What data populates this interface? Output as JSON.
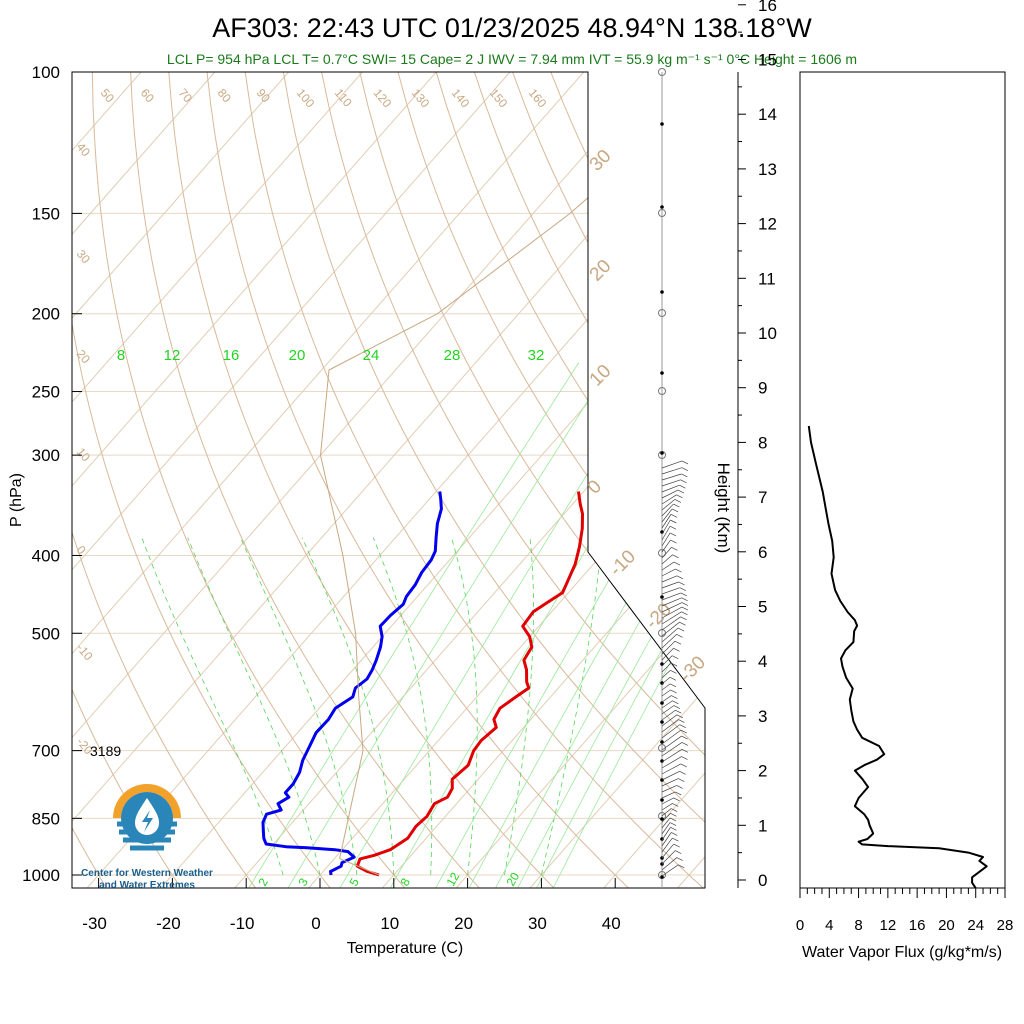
{
  "title": "AF303: 22:43 UTC 01/23/2025  48.94°N 138.18°W",
  "subtitle": "LCL P= 954 hPa  LCL T= 0.7°C  SWI= 15  Cape= 2 J  IWV = 7.94 mm  IVT = 55.9 kg m⁻¹ s⁻¹  0°C Height = 1606 m",
  "annotation_3189": "3189",
  "logo_line1": "Center for Western Weather",
  "logo_line2": "and Water Extremes",
  "chart_data": [
    {
      "type": "line",
      "name": "skew-t",
      "xlabel": "Temperature (C)",
      "ylabel": "P (hPa)",
      "ylog": true,
      "xlim": [
        -34,
        52
      ],
      "ylim": [
        1050,
        100
      ],
      "x_ticks": [
        "-30",
        "-20",
        "-10",
        "0",
        "10",
        "20",
        "30",
        "40"
      ],
      "y_ticks": [
        "100",
        "150",
        "200",
        "250",
        "300",
        "400",
        "500",
        "700",
        "850",
        "1000"
      ],
      "isotherm_labels": [
        "50",
        "60",
        "70",
        "80",
        "90",
        "100",
        "110",
        "120",
        "130",
        "140",
        "150",
        "160"
      ],
      "dry_adiabat_labels": [
        "40",
        "30",
        "20",
        "10",
        "0",
        "-10",
        "-20"
      ],
      "mixing_ratio_top_labels": [
        "8",
        "12",
        "16",
        "20",
        "24",
        "28",
        "32"
      ],
      "mixing_ratio_bottom_labels": [
        "2",
        "3",
        "5",
        "8",
        "12",
        "20"
      ],
      "right_temp_labels": [
        "30",
        "20",
        "10",
        "0",
        "-10",
        "-20",
        "-30"
      ],
      "series": [
        {
          "key": "temperature",
          "color": "#e00000",
          "points": [
            [
              8,
              1000
            ],
            [
              6,
              990
            ],
            [
              4,
              975
            ],
            [
              3.5,
              955
            ],
            [
              5,
              945
            ],
            [
              6.5,
              930
            ],
            [
              7.5,
              900
            ],
            [
              7.2,
              870
            ],
            [
              7.5,
              845
            ],
            [
              7,
              815
            ],
            [
              8,
              800
            ],
            [
              7.6,
              780
            ],
            [
              6.5,
              760
            ],
            [
              7,
              730
            ],
            [
              6,
              700
            ],
            [
              5.8,
              680
            ],
            [
              6.3,
              655
            ],
            [
              5,
              640
            ],
            [
              4.5,
              620
            ],
            [
              5.3,
              600
            ],
            [
              6,
              585
            ],
            [
              5,
              575
            ],
            [
              3.5,
              555
            ],
            [
              2,
              540
            ],
            [
              1.5,
              520
            ],
            [
              0,
              505
            ],
            [
              -2.2,
              490
            ],
            [
              -2.5,
              470
            ],
            [
              -1.5,
              455
            ],
            [
              -0.8,
              445
            ],
            [
              -1.5,
              430
            ],
            [
              -2.5,
              410
            ],
            [
              -4,
              390
            ],
            [
              -5.8,
              370
            ],
            [
              -7.5,
              355
            ],
            [
              -9,
              345
            ],
            [
              -10.7,
              333
            ]
          ]
        },
        {
          "key": "dewpoint",
          "color": "#0000ee",
          "points": [
            [
              1.5,
              1000
            ],
            [
              1,
              990
            ],
            [
              1.8,
              975
            ],
            [
              1.5,
              965
            ],
            [
              2.5,
              950
            ],
            [
              1,
              935
            ],
            [
              -1,
              930
            ],
            [
              -5,
              925
            ],
            [
              -8,
              922
            ],
            [
              -11,
              915
            ],
            [
              -12,
              900
            ],
            [
              -13,
              880
            ],
            [
              -14,
              860
            ],
            [
              -14.5,
              840
            ],
            [
              -13,
              830
            ],
            [
              -14.2,
              815
            ],
            [
              -13.5,
              800
            ],
            [
              -14.5,
              790
            ],
            [
              -14.5,
              770
            ],
            [
              -15,
              745
            ],
            [
              -16,
              720
            ],
            [
              -16.8,
              690
            ],
            [
              -17.5,
              665
            ],
            [
              -17.4,
              640
            ],
            [
              -17.8,
              620
            ],
            [
              -16.8,
              600
            ],
            [
              -17.5,
              585
            ],
            [
              -17,
              570
            ],
            [
              -17.4,
              555
            ],
            [
              -18,
              540
            ],
            [
              -19,
              520
            ],
            [
              -20,
              505
            ],
            [
              -21.5,
              490
            ],
            [
              -21.4,
              475
            ],
            [
              -21,
              460
            ],
            [
              -21.5,
              450
            ],
            [
              -21.7,
              435
            ],
            [
              -22.3,
              420
            ],
            [
              -22.5,
              405
            ],
            [
              -23,
              395
            ],
            [
              -24.5,
              380
            ],
            [
              -26,
              365
            ],
            [
              -27.2,
              350
            ],
            [
              -28.5,
              340
            ],
            [
              -29.5,
              333
            ]
          ]
        },
        {
          "key": "parcel",
          "color": "#c8a882",
          "points": [
            [
              8,
              1000
            ],
            [
              0.7,
              954
            ],
            [
              -9,
              700
            ],
            [
              -16,
              600
            ],
            [
              -24,
              500
            ],
            [
              -35,
              400
            ],
            [
              -50,
              300
            ],
            [
              -59,
              235
            ],
            [
              -51,
              200
            ],
            [
              -45,
              150
            ],
            [
              -40,
              100
            ]
          ]
        }
      ]
    },
    {
      "type": "line",
      "name": "water-vapor-flux",
      "xlabel": "Water Vapor Flux (g/kg*m/s)",
      "ylabel": "Height (Km)",
      "xlim": [
        0,
        28
      ],
      "ylim": [
        -0.2,
        16.3
      ],
      "x_ticks": [
        "0",
        "4",
        "8",
        "12",
        "16",
        "20",
        "24",
        "28"
      ],
      "y_ticks": [
        "0",
        "1",
        "2",
        "3",
        "4",
        "5",
        "6",
        "7",
        "8",
        "9",
        "10",
        "11",
        "12",
        "13",
        "14",
        "15",
        "16"
      ],
      "series": [
        {
          "key": "flux",
          "color": "#000000",
          "points": [
            [
              25.5,
              -0.2
            ],
            [
              24,
              -0.15
            ],
            [
              23.5,
              -0.05
            ],
            [
              23.5,
              0.05
            ],
            [
              24.5,
              0.15
            ],
            [
              25.5,
              0.25
            ],
            [
              24.5,
              0.35
            ],
            [
              25,
              0.42
            ],
            [
              23,
              0.5
            ],
            [
              19,
              0.58
            ],
            [
              12,
              0.62
            ],
            [
              8.5,
              0.65
            ],
            [
              8,
              0.7
            ],
            [
              9.2,
              0.75
            ],
            [
              10,
              0.85
            ],
            [
              9.5,
              1.0
            ],
            [
              9.3,
              1.1
            ],
            [
              8.8,
              1.2
            ],
            [
              7.5,
              1.35
            ],
            [
              8,
              1.5
            ],
            [
              9.3,
              1.7
            ],
            [
              8.5,
              1.85
            ],
            [
              7.5,
              2.0
            ],
            [
              8.8,
              2.1
            ],
            [
              10.5,
              2.2
            ],
            [
              11.5,
              2.3
            ],
            [
              10.8,
              2.45
            ],
            [
              8.5,
              2.6
            ],
            [
              7.8,
              2.75
            ],
            [
              7.3,
              2.9
            ],
            [
              7,
              3.1
            ],
            [
              6.8,
              3.3
            ],
            [
              7.2,
              3.5
            ],
            [
              6.3,
              3.7
            ],
            [
              5.8,
              3.9
            ],
            [
              5.6,
              4.05
            ],
            [
              6.2,
              4.2
            ],
            [
              7.3,
              4.35
            ],
            [
              7.4,
              4.55
            ],
            [
              7.8,
              4.65
            ],
            [
              7.5,
              4.75
            ],
            [
              6.5,
              4.9
            ],
            [
              5.5,
              5.1
            ],
            [
              4.8,
              5.3
            ],
            [
              4.3,
              5.6
            ],
            [
              4.6,
              5.9
            ],
            [
              4.4,
              6.2
            ],
            [
              3.9,
              6.5
            ],
            [
              3.5,
              6.8
            ],
            [
              3.1,
              7.1
            ],
            [
              2.2,
              7.6
            ],
            [
              1.5,
              8.0
            ],
            [
              1.2,
              8.3
            ]
          ]
        }
      ]
    }
  ]
}
